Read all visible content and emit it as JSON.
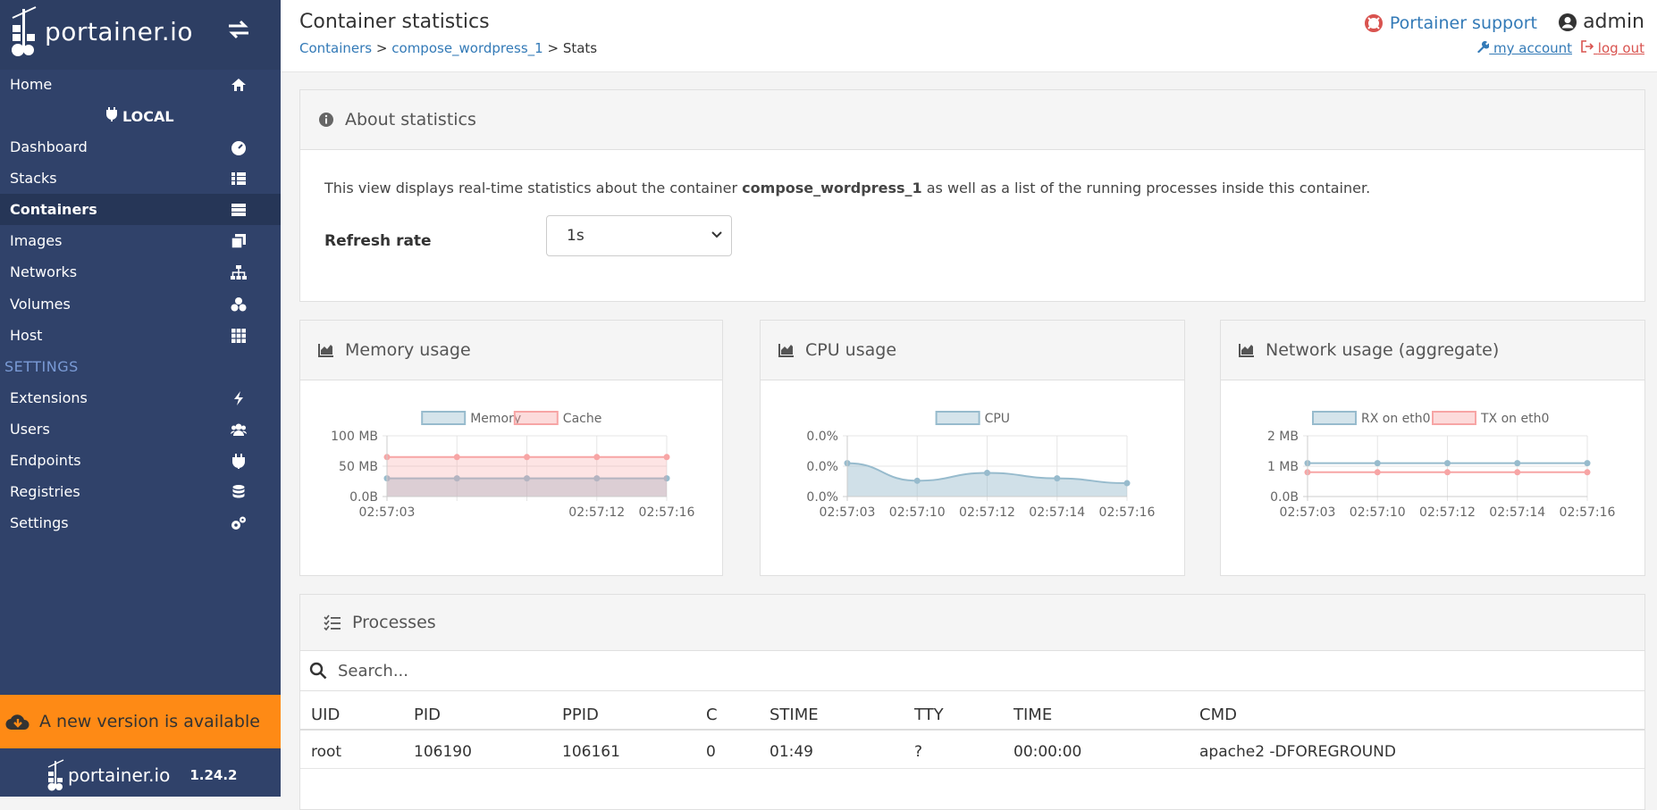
{
  "sidebar": {
    "logo_text": "portainer.io",
    "endpoint_label": "LOCAL",
    "settings_heading": "SETTINGS",
    "items": [
      {
        "label": "Home"
      },
      {
        "label": "Dashboard"
      },
      {
        "label": "Stacks"
      },
      {
        "label": "Containers"
      },
      {
        "label": "Images"
      },
      {
        "label": "Networks"
      },
      {
        "label": "Volumes"
      },
      {
        "label": "Host"
      }
    ],
    "settings_items": [
      {
        "label": "Extensions"
      },
      {
        "label": "Users"
      },
      {
        "label": "Endpoints"
      },
      {
        "label": "Registries"
      },
      {
        "label": "Settings"
      }
    ],
    "update_banner": "A new version is available",
    "footer_logo": "portainer.io",
    "version": "1.24.2"
  },
  "header": {
    "title": "Container statistics",
    "breadcrumb": {
      "containers": "Containers",
      "container": "compose_wordpress_1",
      "current": "Stats",
      "separator": ">"
    },
    "support": "Portainer support",
    "username": "admin",
    "my_account": "my account",
    "log_out": "log out"
  },
  "about": {
    "title": "About statistics",
    "text_before": "This view displays real-time statistics about the container ",
    "container_name": "compose_wordpress_1",
    "text_after": " as well as a list of the running processes inside this container.",
    "refresh_label": "Refresh rate",
    "refresh_value": "1s"
  },
  "colors": {
    "sidebar": "#30426a",
    "banner": "#fe8a15",
    "blue_series": "#97bbcd",
    "red_series": "#f7a5a5",
    "link": "#337ab7"
  },
  "chart_data": [
    {
      "type": "area",
      "title": "Memory usage",
      "x": [
        "02:57:03",
        "02:57:06",
        "02:57:09",
        "02:57:12",
        "02:57:16"
      ],
      "x_tick_labels": [
        "02:57:03",
        "02:57:12",
        "02:57:16"
      ],
      "y_tick_labels": [
        "100 MB",
        "50 MB",
        "0.0B"
      ],
      "ylim": [
        0,
        100
      ],
      "legend_position": "top",
      "series": [
        {
          "name": "Memory",
          "values": [
            30,
            30,
            30,
            30,
            30
          ],
          "color": "#97bbcd"
        },
        {
          "name": "Cache",
          "values": [
            65,
            65,
            65,
            65,
            65
          ],
          "color": "#f7a5a5"
        }
      ]
    },
    {
      "type": "area",
      "title": "CPU usage",
      "x": [
        "02:57:03",
        "02:57:10",
        "02:57:12",
        "02:57:14",
        "02:57:16"
      ],
      "y_tick_labels": [
        "0.0%",
        "0.0%",
        "0.0%"
      ],
      "ylim": [
        0,
        0.01
      ],
      "legend_position": "top",
      "series": [
        {
          "name": "CPU",
          "values": [
            0.0055,
            0.0026,
            0.0039,
            0.003,
            0.0022
          ],
          "color": "#97bbcd"
        }
      ]
    },
    {
      "type": "line",
      "title": "Network usage (aggregate)",
      "x": [
        "02:57:03",
        "02:57:10",
        "02:57:12",
        "02:57:14",
        "02:57:16"
      ],
      "y_tick_labels": [
        "2 MB",
        "1 MB",
        "0.0B"
      ],
      "ylim": [
        0,
        2
      ],
      "legend_position": "top",
      "series": [
        {
          "name": "RX on eth0",
          "values": [
            1.1,
            1.1,
            1.1,
            1.1,
            1.1
          ],
          "color": "#97bbcd"
        },
        {
          "name": "TX on eth0",
          "values": [
            0.8,
            0.8,
            0.8,
            0.8,
            0.8
          ],
          "color": "#f7a5a5"
        }
      ]
    }
  ],
  "processes": {
    "title": "Processes",
    "search_placeholder": "Search...",
    "columns": [
      "UID",
      "PID",
      "PPID",
      "C",
      "STIME",
      "TTY",
      "TIME",
      "CMD"
    ],
    "rows": [
      [
        "root",
        "106190",
        "106161",
        "0",
        "01:49",
        "?",
        "00:00:00",
        "apache2 -DFOREGROUND"
      ]
    ]
  }
}
